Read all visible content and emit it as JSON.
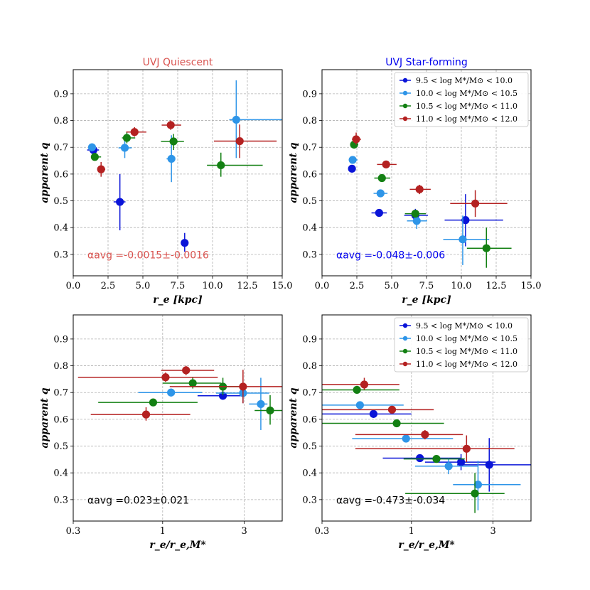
{
  "colors": {
    "m1": "#0a14d8",
    "m2": "#2e95e8",
    "m3": "#138013",
    "m4": "#b42121",
    "grid": "#b0b0b0",
    "quiescent_title": "#d9534f",
    "starforming_title": "#0000ee"
  },
  "chart_data": [
    {
      "type": "scatter",
      "panel": "top-left",
      "title": "UVJ Quiescent",
      "title_color": "#d9534f",
      "xlabel": "r_e [kpc]",
      "ylabel": "apparent q",
      "xscale": "linear",
      "xlim": [
        0,
        15
      ],
      "ylim": [
        0.22,
        0.99
      ],
      "xticks": [
        0,
        2.5,
        5,
        7.5,
        10,
        12.5,
        15
      ],
      "xticklabels": [
        "0.0",
        "2.5",
        "5.0",
        "7.5",
        "10.0",
        "12.5",
        "15.0"
      ],
      "yticks": [
        0.3,
        0.4,
        0.5,
        0.6,
        0.7,
        0.8,
        0.9
      ],
      "yticklabels": [
        "0.3",
        "0.4",
        "0.5",
        "0.6",
        "0.7",
        "0.8",
        "0.9"
      ],
      "grid": true,
      "annotation": "αavg =-0.0015±-0.0016",
      "annotation_color": "#d9534f",
      "legend": null,
      "series": [
        {
          "name": "9.5 < log M*/M⊙ < 10.0",
          "color": "#0a14d8",
          "points": [
            {
              "x": 1.45,
              "y": 0.69,
              "xlo": 1.0,
              "xhi": 1.85,
              "ylo": 0.675,
              "yhi": 0.705
            },
            {
              "x": 3.35,
              "y": 0.496,
              "xlo": 2.9,
              "xhi": 3.75,
              "ylo": 0.39,
              "yhi": 0.6
            },
            {
              "x": 8.0,
              "y": 0.343,
              "xlo": 7.95,
              "xhi": 8.05,
              "ylo": 0.31,
              "yhi": 0.38
            }
          ]
        },
        {
          "name": "10.0 < log M*/M⊙ < 10.5",
          "color": "#2e95e8",
          "points": [
            {
              "x": 1.35,
              "y": 0.7,
              "xlo": 1.25,
              "xhi": 1.5,
              "ylo": 0.685,
              "yhi": 0.715
            },
            {
              "x": 3.7,
              "y": 0.698,
              "xlo": 3.25,
              "xhi": 4.2,
              "ylo": 0.66,
              "yhi": 0.735
            },
            {
              "x": 7.05,
              "y": 0.657,
              "xlo": 6.7,
              "xhi": 7.2,
              "ylo": 0.57,
              "yhi": 0.745
            },
            {
              "x": 11.7,
              "y": 0.803,
              "xlo": 11.2,
              "xhi": 15.0,
              "ylo": 0.66,
              "yhi": 0.95
            }
          ]
        },
        {
          "name": "10.5 < log M*/M⊙ < 11.0",
          "color": "#138013",
          "points": [
            {
              "x": 1.55,
              "y": 0.664,
              "xlo": 1.3,
              "xhi": 2.0,
              "ylo": 0.655,
              "yhi": 0.675
            },
            {
              "x": 3.85,
              "y": 0.735,
              "xlo": 3.5,
              "xhi": 4.45,
              "ylo": 0.715,
              "yhi": 0.755
            },
            {
              "x": 7.2,
              "y": 0.722,
              "xlo": 6.3,
              "xhi": 7.95,
              "ylo": 0.69,
              "yhi": 0.75
            },
            {
              "x": 10.6,
              "y": 0.633,
              "xlo": 9.6,
              "xhi": 13.6,
              "ylo": 0.59,
              "yhi": 0.68
            }
          ]
        },
        {
          "name": "11.0 < log M*/M⊙ < 12.0",
          "color": "#b42121",
          "points": [
            {
              "x": 2.0,
              "y": 0.618,
              "xlo": 1.75,
              "xhi": 2.3,
              "ylo": 0.59,
              "yhi": 0.645
            },
            {
              "x": 4.4,
              "y": 0.757,
              "xlo": 3.8,
              "xhi": 5.25,
              "ylo": 0.74,
              "yhi": 0.775
            },
            {
              "x": 7.0,
              "y": 0.783,
              "xlo": 6.35,
              "xhi": 7.75,
              "ylo": 0.765,
              "yhi": 0.8
            },
            {
              "x": 11.95,
              "y": 0.723,
              "xlo": 10.1,
              "xhi": 14.6,
              "ylo": 0.66,
              "yhi": 0.785
            }
          ]
        }
      ]
    },
    {
      "type": "scatter",
      "panel": "top-right",
      "title": "UVJ Star-forming",
      "title_color": "#0000ee",
      "xlabel": "r_e [kpc]",
      "ylabel": "apparent q",
      "xscale": "linear",
      "xlim": [
        0,
        15
      ],
      "ylim": [
        0.22,
        0.99
      ],
      "xticks": [
        0,
        2.5,
        5,
        7.5,
        10,
        12.5,
        15
      ],
      "xticklabels": [
        "0.0",
        "2.5",
        "5.0",
        "7.5",
        "10.0",
        "12.5",
        "15.0"
      ],
      "yticks": [
        0.3,
        0.4,
        0.5,
        0.6,
        0.7,
        0.8,
        0.9
      ],
      "yticklabels": [
        "0.3",
        "0.4",
        "0.5",
        "0.6",
        "0.7",
        "0.8",
        "0.9"
      ],
      "grid": true,
      "annotation": "αavg =-0.048±-0.006",
      "annotation_color": "#0000ee",
      "legend": "top-right",
      "series": [
        {
          "name": "9.5 < log M*/M⊙ < 10.0",
          "color": "#0a14d8",
          "points": [
            {
              "x": 2.15,
              "y": 0.62,
              "xlo": 1.9,
              "xhi": 2.4,
              "ylo": 0.61,
              "yhi": 0.63
            },
            {
              "x": 4.1,
              "y": 0.455,
              "xlo": 3.55,
              "xhi": 4.65,
              "ylo": 0.445,
              "yhi": 0.465
            },
            {
              "x": 6.7,
              "y": 0.446,
              "xlo": 5.9,
              "xhi": 7.6,
              "ylo": 0.425,
              "yhi": 0.47
            },
            {
              "x": 10.3,
              "y": 0.428,
              "xlo": 8.8,
              "xhi": 13.0,
              "ylo": 0.33,
              "yhi": 0.525
            }
          ]
        },
        {
          "name": "10.0 < log M*/M⊙ < 10.5",
          "color": "#2e95e8",
          "points": [
            {
              "x": 2.2,
              "y": 0.653,
              "xlo": 1.95,
              "xhi": 2.55,
              "ylo": 0.64,
              "yhi": 0.665
            },
            {
              "x": 4.2,
              "y": 0.528,
              "xlo": 3.7,
              "xhi": 4.7,
              "ylo": 0.515,
              "yhi": 0.54
            },
            {
              "x": 6.8,
              "y": 0.425,
              "xlo": 6.1,
              "xhi": 7.55,
              "ylo": 0.395,
              "yhi": 0.455
            },
            {
              "x": 10.1,
              "y": 0.356,
              "xlo": 8.7,
              "xhi": 12.0,
              "ylo": 0.26,
              "yhi": 0.445
            }
          ]
        },
        {
          "name": "10.5 < log M*/M⊙ < 11.0",
          "color": "#138013",
          "points": [
            {
              "x": 2.3,
              "y": 0.71,
              "xlo": 2.05,
              "xhi": 2.6,
              "ylo": 0.695,
              "yhi": 0.725
            },
            {
              "x": 4.3,
              "y": 0.585,
              "xlo": 3.75,
              "xhi": 4.9,
              "ylo": 0.575,
              "yhi": 0.595
            },
            {
              "x": 6.7,
              "y": 0.452,
              "xlo": 5.95,
              "xhi": 7.45,
              "ylo": 0.44,
              "yhi": 0.465
            },
            {
              "x": 11.8,
              "y": 0.323,
              "xlo": 10.4,
              "xhi": 13.6,
              "ylo": 0.25,
              "yhi": 0.4
            }
          ]
        },
        {
          "name": "11.0 < log M*/M⊙ < 12.0",
          "color": "#b42121",
          "points": [
            {
              "x": 2.45,
              "y": 0.73,
              "xlo": 2.15,
              "xhi": 2.8,
              "ylo": 0.71,
              "yhi": 0.755
            },
            {
              "x": 4.6,
              "y": 0.636,
              "xlo": 3.95,
              "xhi": 5.35,
              "ylo": 0.625,
              "yhi": 0.648
            },
            {
              "x": 7.0,
              "y": 0.543,
              "xlo": 6.3,
              "xhi": 7.8,
              "ylo": 0.525,
              "yhi": 0.56
            },
            {
              "x": 11.0,
              "y": 0.49,
              "xlo": 9.2,
              "xhi": 13.3,
              "ylo": 0.44,
              "yhi": 0.54
            }
          ]
        }
      ]
    },
    {
      "type": "scatter",
      "panel": "bottom-left",
      "title": "",
      "xlabel": "r_e/r_e,M*",
      "ylabel": "apparent q",
      "xscale": "log",
      "xlim": [
        0.3,
        5.0
      ],
      "ylim": [
        0.22,
        0.99
      ],
      "xticks": [
        0.3,
        1,
        3
      ],
      "xticklabels": [
        "0.3",
        "1",
        "3"
      ],
      "yticks": [
        0.3,
        0.4,
        0.5,
        0.6,
        0.7,
        0.8,
        0.9
      ],
      "yticklabels": [
        "0.3",
        "0.4",
        "0.5",
        "0.6",
        "0.7",
        "0.8",
        "0.9"
      ],
      "grid": true,
      "annotation": "αavg =0.023±0.021",
      "annotation_color": "#000000",
      "legend": null,
      "series": [
        {
          "name": "9.5 < log M*/M⊙ < 10.0",
          "color": "#0a14d8",
          "points": [
            {
              "x": 2.25,
              "y": 0.688,
              "xlo": 1.6,
              "xhi": 3.0,
              "ylo": 0.673,
              "yhi": 0.703
            }
          ]
        },
        {
          "name": "10.0 < log M*/M⊙ < 10.5",
          "color": "#2e95e8",
          "points": [
            {
              "x": 1.12,
              "y": 0.7,
              "xlo": 0.72,
              "xhi": 1.7,
              "ylo": 0.685,
              "yhi": 0.715
            },
            {
              "x": 2.95,
              "y": 0.698,
              "xlo": 2.05,
              "xhi": 4.2,
              "ylo": 0.66,
              "yhi": 0.735
            },
            {
              "x": 3.75,
              "y": 0.657,
              "xlo": 3.2,
              "xhi": 4.1,
              "ylo": 0.56,
              "yhi": 0.755
            }
          ]
        },
        {
          "name": "10.5 < log M*/M⊙ < 11.0",
          "color": "#138013",
          "points": [
            {
              "x": 0.88,
              "y": 0.663,
              "xlo": 0.42,
              "xhi": 1.6,
              "ylo": 0.65,
              "yhi": 0.677
            },
            {
              "x": 1.5,
              "y": 0.735,
              "xlo": 1.0,
              "xhi": 2.2,
              "ylo": 0.715,
              "yhi": 0.755
            },
            {
              "x": 2.25,
              "y": 0.722,
              "xlo": 1.5,
              "xhi": 3.0,
              "ylo": 0.69,
              "yhi": 0.755
            },
            {
              "x": 4.25,
              "y": 0.633,
              "xlo": 3.45,
              "xhi": 5.0,
              "ylo": 0.58,
              "yhi": 0.69
            }
          ]
        },
        {
          "name": "11.0 < log M*/M⊙ < 12.0",
          "color": "#b42121",
          "points": [
            {
              "x": 0.8,
              "y": 0.618,
              "xlo": 0.38,
              "xhi": 1.45,
              "ylo": 0.595,
              "yhi": 0.645
            },
            {
              "x": 1.04,
              "y": 0.757,
              "xlo": 0.32,
              "xhi": 2.1,
              "ylo": 0.74,
              "yhi": 0.775
            },
            {
              "x": 1.37,
              "y": 0.783,
              "xlo": 0.98,
              "xhi": 2.0,
              "ylo": 0.765,
              "yhi": 0.8
            },
            {
              "x": 2.95,
              "y": 0.722,
              "xlo": 1.1,
              "xhi": 5.0,
              "ylo": 0.66,
              "yhi": 0.785
            }
          ]
        }
      ]
    },
    {
      "type": "scatter",
      "panel": "bottom-right",
      "title": "",
      "xlabel": "r_e/r_e,M*",
      "ylabel": "apparent q",
      "xscale": "log",
      "xlim": [
        0.3,
        5.0
      ],
      "ylim": [
        0.22,
        0.99
      ],
      "xticks": [
        0.3,
        1,
        3
      ],
      "xticklabels": [
        "0.3",
        "1",
        "3"
      ],
      "yticks": [
        0.3,
        0.4,
        0.5,
        0.6,
        0.7,
        0.8,
        0.9
      ],
      "yticklabels": [
        "0.3",
        "0.4",
        "0.5",
        "0.6",
        "0.7",
        "0.8",
        "0.9"
      ],
      "grid": true,
      "annotation": "αavg =-0.473±-0.034",
      "annotation_color": "#000000",
      "legend": "top-right",
      "series": [
        {
          "name": "9.5 < log M*/M⊙ < 10.0",
          "color": "#0a14d8",
          "points": [
            {
              "x": 0.6,
              "y": 0.62,
              "xlo": 0.3,
              "xhi": 1.0,
              "ylo": 0.608,
              "yhi": 0.632
            },
            {
              "x": 1.12,
              "y": 0.455,
              "xlo": 0.68,
              "xhi": 1.95,
              "ylo": 0.443,
              "yhi": 0.467
            },
            {
              "x": 1.95,
              "y": 0.44,
              "xlo": 1.2,
              "xhi": 3.1,
              "ylo": 0.41,
              "yhi": 0.47
            },
            {
              "x": 2.85,
              "y": 0.43,
              "xlo": 1.85,
              "xhi": 5.0,
              "ylo": 0.33,
              "yhi": 0.53
            }
          ]
        },
        {
          "name": "10.0 < log M*/M⊙ < 10.5",
          "color": "#2e95e8",
          "points": [
            {
              "x": 0.5,
              "y": 0.653,
              "xlo": 0.3,
              "xhi": 0.9,
              "ylo": 0.64,
              "yhi": 0.666
            },
            {
              "x": 0.93,
              "y": 0.528,
              "xlo": 0.45,
              "xhi": 1.75,
              "ylo": 0.515,
              "yhi": 0.541
            },
            {
              "x": 1.65,
              "y": 0.425,
              "xlo": 1.05,
              "xhi": 2.45,
              "ylo": 0.395,
              "yhi": 0.455
            },
            {
              "x": 2.45,
              "y": 0.356,
              "xlo": 1.75,
              "xhi": 4.35,
              "ylo": 0.26,
              "yhi": 0.445
            }
          ]
        },
        {
          "name": "10.5 < log M*/M⊙ < 11.0",
          "color": "#138013",
          "points": [
            {
              "x": 0.48,
              "y": 0.71,
              "xlo": 0.3,
              "xhi": 0.85,
              "ylo": 0.695,
              "yhi": 0.725
            },
            {
              "x": 0.82,
              "y": 0.585,
              "xlo": 0.3,
              "xhi": 1.55,
              "ylo": 0.572,
              "yhi": 0.598
            },
            {
              "x": 1.4,
              "y": 0.452,
              "xlo": 0.9,
              "xhi": 2.05,
              "ylo": 0.438,
              "yhi": 0.466
            },
            {
              "x": 2.35,
              "y": 0.323,
              "xlo": 0.92,
              "xhi": 3.5,
              "ylo": 0.25,
              "yhi": 0.4
            }
          ]
        },
        {
          "name": "11.0 < log M*/M⊙ < 12.0",
          "color": "#b42121",
          "points": [
            {
              "x": 0.53,
              "y": 0.73,
              "xlo": 0.3,
              "xhi": 0.85,
              "ylo": 0.71,
              "yhi": 0.755
            },
            {
              "x": 0.77,
              "y": 0.636,
              "xlo": 0.3,
              "xhi": 1.35,
              "ylo": 0.623,
              "yhi": 0.65
            },
            {
              "x": 1.2,
              "y": 0.543,
              "xlo": 0.47,
              "xhi": 2.0,
              "ylo": 0.525,
              "yhi": 0.56
            },
            {
              "x": 2.1,
              "y": 0.49,
              "xlo": 0.47,
              "xhi": 4.0,
              "ylo": 0.44,
              "yhi": 0.54
            }
          ]
        }
      ]
    }
  ]
}
